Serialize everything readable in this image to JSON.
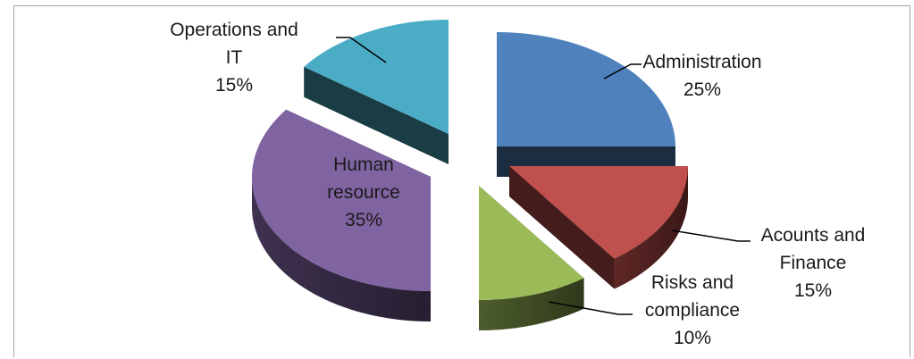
{
  "chart_data": {
    "type": "pie",
    "title": "",
    "style": "3d-exploded",
    "slices": [
      {
        "label": "Administration",
        "value": 25,
        "value_label": "25%",
        "color": "#4f81bd",
        "label_lines": [
          "Administration",
          "25%"
        ]
      },
      {
        "label": "Acounts and Finance",
        "value": 15,
        "value_label": "15%",
        "color": "#c0504d",
        "label_lines": [
          "Acounts and",
          "Finance",
          "15%"
        ]
      },
      {
        "label": "Risks and compliance",
        "value": 10,
        "value_label": "10%",
        "color": "#9bbb59",
        "label_lines": [
          "Risks and",
          "compliance",
          "10%"
        ]
      },
      {
        "label": "Human resource",
        "value": 35,
        "value_label": "35%",
        "color": "#8064a2",
        "label_lines": [
          "Human",
          "resource",
          "35%"
        ]
      },
      {
        "label": "Operations and IT",
        "value": 15,
        "value_label": "15%",
        "color": "#4bacc6",
        "label_lines": [
          "Operations and",
          "IT",
          "15%"
        ]
      }
    ]
  }
}
